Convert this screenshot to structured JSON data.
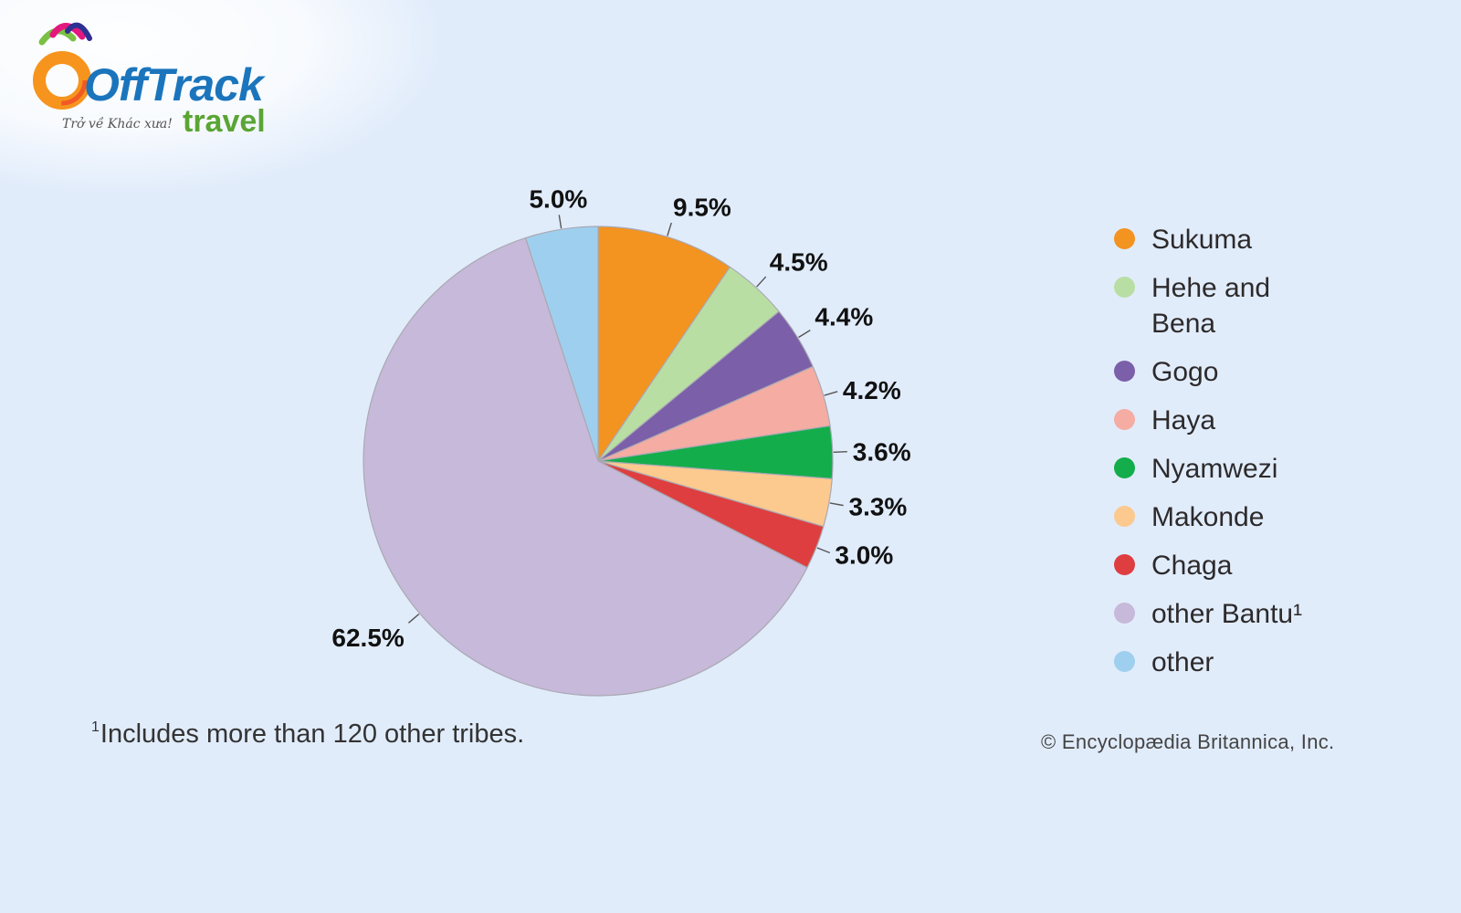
{
  "logo": {
    "brand": "OffTrack",
    "tagline": "Trở về Khác xưa!",
    "subtitle": "travel"
  },
  "chart_data": {
    "type": "pie",
    "start_angle_deg": 0,
    "direction": "clockwise",
    "slices": [
      {
        "label": "Sukuma",
        "value": 9.5,
        "display": "9.5%",
        "color": "#f39320"
      },
      {
        "label": "Hehe and Bena",
        "value": 4.5,
        "display": "4.5%",
        "color": "#b9dea4"
      },
      {
        "label": "Gogo",
        "value": 4.4,
        "display": "4.4%",
        "color": "#7b5fa8"
      },
      {
        "label": "Haya",
        "value": 4.2,
        "display": "4.2%",
        "color": "#f5aca3"
      },
      {
        "label": "Nyamwezi",
        "value": 3.6,
        "display": "3.6%",
        "color": "#14ad4b"
      },
      {
        "label": "Makonde",
        "value": 3.3,
        "display": "3.3%",
        "color": "#fcc98f"
      },
      {
        "label": "Chaga",
        "value": 3.0,
        "display": "3.0%",
        "color": "#de3e3f"
      },
      {
        "label": "other Bantu¹",
        "value": 62.5,
        "display": "62.5%",
        "color": "#c7b9d9"
      },
      {
        "label": "other",
        "value": 5.0,
        "display": "5.0%",
        "color": "#9fcfee"
      }
    ],
    "legend_position": "right",
    "footnote_marker": "1",
    "footnote": "Includes more than 120 other tribes.",
    "credit": "© Encyclopædia Britannica, Inc."
  }
}
